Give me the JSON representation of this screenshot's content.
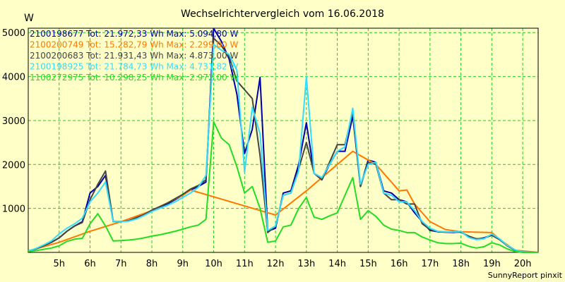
{
  "chart_data": {
    "type": "line",
    "title": "Wechselrichtervergleich vom 16.06.2018",
    "ylabel": "W",
    "xlabel": "",
    "xlim": [
      4.0,
      20.5
    ],
    "ylim": [
      0,
      5100
    ],
    "x_ticks": [
      5,
      6,
      7,
      8,
      9,
      10,
      11,
      12,
      13,
      14,
      15,
      16,
      17,
      18,
      19,
      20
    ],
    "x_tick_labels": [
      "5h",
      "6h",
      "7h",
      "8h",
      "9h",
      "10h",
      "11h",
      "12h",
      "13h",
      "14h",
      "15h",
      "16h",
      "17h",
      "18h",
      "19h",
      "20h"
    ],
    "y_ticks": [
      1000,
      2000,
      3000,
      4000,
      5000
    ],
    "y_tick_labels": [
      "1000",
      "2000",
      "3000",
      "4000",
      "5000"
    ],
    "grid": true,
    "grid_color": "#22cc22",
    "background": "#ffffc8",
    "legend_position": "top-left",
    "series": [
      {
        "name": "2100198677",
        "legend_text": "2100198677 Tot: 21.972,33 Wh Max: 5.094,80 W",
        "color": "#0000aa",
        "points": [
          [
            4.0,
            30
          ],
          [
            4.25,
            80
          ],
          [
            4.5,
            150
          ],
          [
            4.75,
            230
          ],
          [
            5.0,
            330
          ],
          [
            5.25,
            480
          ],
          [
            5.5,
            600
          ],
          [
            5.75,
            700
          ],
          [
            6.0,
            1350
          ],
          [
            6.25,
            1500
          ],
          [
            6.5,
            1750
          ],
          [
            6.75,
            700
          ],
          [
            7.0,
            700
          ],
          [
            7.25,
            720
          ],
          [
            7.5,
            780
          ],
          [
            7.75,
            850
          ],
          [
            8.0,
            950
          ],
          [
            8.25,
            1020
          ],
          [
            8.5,
            1100
          ],
          [
            8.75,
            1200
          ],
          [
            9.0,
            1300
          ],
          [
            9.25,
            1420
          ],
          [
            9.5,
            1500
          ],
          [
            9.75,
            1600
          ],
          [
            10.0,
            5095
          ],
          [
            10.25,
            4800
          ],
          [
            10.5,
            4400
          ],
          [
            10.75,
            3600
          ],
          [
            11.0,
            2250
          ],
          [
            11.25,
            2800
          ],
          [
            11.5,
            3980
          ],
          [
            11.75,
            480
          ],
          [
            12.0,
            550
          ],
          [
            12.25,
            1350
          ],
          [
            12.5,
            1400
          ],
          [
            12.75,
            2000
          ],
          [
            13.0,
            2950
          ],
          [
            13.25,
            1800
          ],
          [
            13.5,
            1650
          ],
          [
            13.75,
            2000
          ],
          [
            14.0,
            2300
          ],
          [
            14.25,
            2300
          ],
          [
            14.5,
            3100
          ],
          [
            14.75,
            1500
          ],
          [
            15.0,
            2100
          ],
          [
            15.25,
            2050
          ],
          [
            15.5,
            1400
          ],
          [
            15.75,
            1350
          ],
          [
            16.0,
            1200
          ],
          [
            16.25,
            1150
          ],
          [
            16.5,
            900
          ],
          [
            16.75,
            700
          ],
          [
            17.0,
            500
          ],
          [
            17.25,
            470
          ],
          [
            17.5,
            460
          ],
          [
            17.75,
            450
          ],
          [
            18.0,
            470
          ],
          [
            18.25,
            350
          ],
          [
            18.5,
            300
          ],
          [
            18.75,
            330
          ],
          [
            19.0,
            400
          ],
          [
            19.25,
            300
          ],
          [
            19.5,
            150
          ],
          [
            19.75,
            50
          ],
          [
            20.0,
            10
          ],
          [
            20.5,
            0
          ]
        ]
      },
      {
        "name": "2100200749",
        "legend_text": "2100200749 Tot: 15.282,79 Wh Max: 2.299,00 W",
        "color": "#ff7700",
        "points": [
          [
            4.0,
            30
          ],
          [
            5.0,
            230
          ],
          [
            6.0,
            480
          ],
          [
            7.0,
            700
          ],
          [
            8.0,
            950
          ],
          [
            9.0,
            1300
          ],
          [
            9.25,
            1420
          ],
          [
            12.0,
            850
          ],
          [
            13.0,
            1400
          ],
          [
            14.5,
            2300
          ],
          [
            15.25,
            2000
          ],
          [
            16.0,
            1400
          ],
          [
            16.25,
            1420
          ],
          [
            16.5,
            1100
          ],
          [
            17.0,
            700
          ],
          [
            17.5,
            520
          ],
          [
            18.0,
            470
          ],
          [
            19.0,
            450
          ],
          [
            19.25,
            300
          ],
          [
            19.75,
            50
          ],
          [
            20.5,
            0
          ]
        ]
      },
      {
        "name": "2100200683",
        "legend_text": "2100200683 Tot: 21.931,43 Wh Max: 4.873,00 W",
        "color": "#444444",
        "points": [
          [
            4.0,
            30
          ],
          [
            4.25,
            80
          ],
          [
            4.5,
            150
          ],
          [
            4.75,
            230
          ],
          [
            5.0,
            330
          ],
          [
            5.25,
            480
          ],
          [
            5.5,
            600
          ],
          [
            5.75,
            680
          ],
          [
            6.0,
            1200
          ],
          [
            6.25,
            1550
          ],
          [
            6.5,
            1850
          ],
          [
            6.75,
            700
          ],
          [
            7.0,
            700
          ],
          [
            7.25,
            720
          ],
          [
            7.5,
            790
          ],
          [
            7.75,
            860
          ],
          [
            8.0,
            960
          ],
          [
            8.25,
            1040
          ],
          [
            8.5,
            1120
          ],
          [
            8.75,
            1220
          ],
          [
            9.0,
            1320
          ],
          [
            9.25,
            1440
          ],
          [
            9.5,
            1520
          ],
          [
            9.75,
            1650
          ],
          [
            10.0,
            4873
          ],
          [
            10.25,
            4700
          ],
          [
            10.5,
            4450
          ],
          [
            10.75,
            3900
          ],
          [
            11.0,
            3700
          ],
          [
            11.25,
            3500
          ],
          [
            11.5,
            2200
          ],
          [
            11.75,
            450
          ],
          [
            12.0,
            600
          ],
          [
            12.25,
            1300
          ],
          [
            12.5,
            1350
          ],
          [
            12.75,
            1900
          ],
          [
            13.0,
            2500
          ],
          [
            13.25,
            1800
          ],
          [
            13.5,
            1650
          ],
          [
            13.75,
            2050
          ],
          [
            14.0,
            2450
          ],
          [
            14.25,
            2450
          ],
          [
            14.5,
            3200
          ],
          [
            14.75,
            1500
          ],
          [
            15.0,
            2050
          ],
          [
            15.25,
            2000
          ],
          [
            15.5,
            1350
          ],
          [
            15.75,
            1200
          ],
          [
            16.0,
            1200
          ],
          [
            16.25,
            1100
          ],
          [
            16.5,
            1100
          ],
          [
            16.75,
            650
          ],
          [
            17.0,
            520
          ],
          [
            17.25,
            470
          ],
          [
            17.5,
            460
          ],
          [
            17.75,
            460
          ],
          [
            18.0,
            460
          ],
          [
            18.25,
            370
          ],
          [
            18.5,
            310
          ],
          [
            18.75,
            320
          ],
          [
            19.0,
            390
          ],
          [
            19.25,
            290
          ],
          [
            19.5,
            150
          ],
          [
            19.75,
            50
          ],
          [
            20.0,
            10
          ],
          [
            20.5,
            0
          ]
        ]
      },
      {
        "name": "2100198925",
        "legend_text": "2100198925 Tot: 21.784,73 Wh Max: 4.731,82 W",
        "color": "#33ddff",
        "points": [
          [
            4.0,
            30
          ],
          [
            4.25,
            90
          ],
          [
            4.5,
            170
          ],
          [
            4.75,
            260
          ],
          [
            5.0,
            420
          ],
          [
            5.25,
            550
          ],
          [
            5.5,
            650
          ],
          [
            5.75,
            780
          ],
          [
            6.0,
            1150
          ],
          [
            6.25,
            1350
          ],
          [
            6.5,
            1600
          ],
          [
            6.75,
            700
          ],
          [
            7.0,
            700
          ],
          [
            7.25,
            710
          ],
          [
            7.5,
            760
          ],
          [
            7.75,
            840
          ],
          [
            8.0,
            930
          ],
          [
            8.25,
            1000
          ],
          [
            8.5,
            1070
          ],
          [
            8.75,
            1150
          ],
          [
            9.0,
            1250
          ],
          [
            9.25,
            1350
          ],
          [
            9.5,
            1480
          ],
          [
            9.75,
            1750
          ],
          [
            10.0,
            4730
          ],
          [
            10.25,
            4600
          ],
          [
            10.5,
            4500
          ],
          [
            10.75,
            4150
          ],
          [
            11.0,
            1830
          ],
          [
            11.25,
            3300
          ],
          [
            11.5,
            2700
          ],
          [
            11.75,
            500
          ],
          [
            12.0,
            600
          ],
          [
            12.25,
            1300
          ],
          [
            12.5,
            1350
          ],
          [
            12.75,
            1850
          ],
          [
            13.0,
            4000
          ],
          [
            13.25,
            1800
          ],
          [
            13.5,
            1700
          ],
          [
            13.75,
            2000
          ],
          [
            14.0,
            2300
          ],
          [
            14.25,
            2400
          ],
          [
            14.5,
            3280
          ],
          [
            14.75,
            1550
          ],
          [
            15.0,
            2000
          ],
          [
            15.25,
            2050
          ],
          [
            15.5,
            1350
          ],
          [
            15.75,
            1300
          ],
          [
            16.0,
            1150
          ],
          [
            16.25,
            1150
          ],
          [
            16.5,
            950
          ],
          [
            16.75,
            700
          ],
          [
            17.0,
            550
          ],
          [
            17.25,
            480
          ],
          [
            17.5,
            470
          ],
          [
            17.75,
            460
          ],
          [
            18.0,
            480
          ],
          [
            18.25,
            340
          ],
          [
            18.5,
            290
          ],
          [
            18.75,
            310
          ],
          [
            19.0,
            420
          ],
          [
            19.25,
            310
          ],
          [
            19.5,
            160
          ],
          [
            19.75,
            60
          ],
          [
            20.0,
            10
          ],
          [
            20.5,
            0
          ]
        ]
      },
      {
        "name": "1100272975",
        "legend_text": "1100272975 Tot: 10.298,25 Wh Max: 2.972,00 W",
        "color": "#22dd22",
        "points": [
          [
            4.0,
            20
          ],
          [
            4.25,
            40
          ],
          [
            4.5,
            70
          ],
          [
            4.75,
            100
          ],
          [
            5.0,
            150
          ],
          [
            5.25,
            250
          ],
          [
            5.5,
            300
          ],
          [
            5.75,
            320
          ],
          [
            6.0,
            650
          ],
          [
            6.25,
            880
          ],
          [
            6.5,
            600
          ],
          [
            6.75,
            260
          ],
          [
            7.0,
            270
          ],
          [
            7.25,
            280
          ],
          [
            7.5,
            300
          ],
          [
            7.75,
            330
          ],
          [
            8.0,
            370
          ],
          [
            8.25,
            400
          ],
          [
            8.5,
            440
          ],
          [
            8.75,
            480
          ],
          [
            9.0,
            530
          ],
          [
            9.25,
            580
          ],
          [
            9.5,
            620
          ],
          [
            9.75,
            750
          ],
          [
            10.0,
            2972
          ],
          [
            10.25,
            2600
          ],
          [
            10.5,
            2450
          ],
          [
            10.75,
            1950
          ],
          [
            11.0,
            1350
          ],
          [
            11.25,
            1500
          ],
          [
            11.5,
            1000
          ],
          [
            11.75,
            230
          ],
          [
            12.0,
            260
          ],
          [
            12.25,
            580
          ],
          [
            12.5,
            620
          ],
          [
            12.75,
            1000
          ],
          [
            13.0,
            1250
          ],
          [
            13.25,
            800
          ],
          [
            13.5,
            750
          ],
          [
            13.75,
            830
          ],
          [
            14.0,
            900
          ],
          [
            14.25,
            1300
          ],
          [
            14.5,
            1700
          ],
          [
            14.75,
            750
          ],
          [
            15.0,
            950
          ],
          [
            15.25,
            820
          ],
          [
            15.5,
            620
          ],
          [
            15.75,
            530
          ],
          [
            16.0,
            500
          ],
          [
            16.25,
            450
          ],
          [
            16.5,
            450
          ],
          [
            16.75,
            350
          ],
          [
            17.0,
            280
          ],
          [
            17.25,
            220
          ],
          [
            17.5,
            200
          ],
          [
            17.75,
            200
          ],
          [
            18.0,
            210
          ],
          [
            18.25,
            140
          ],
          [
            18.5,
            100
          ],
          [
            18.75,
            130
          ],
          [
            19.0,
            220
          ],
          [
            19.25,
            170
          ],
          [
            19.5,
            80
          ],
          [
            19.75,
            20
          ],
          [
            20.0,
            0
          ],
          [
            20.5,
            0
          ]
        ]
      }
    ]
  },
  "footer": {
    "credit": "SunnyReport pinxit"
  }
}
